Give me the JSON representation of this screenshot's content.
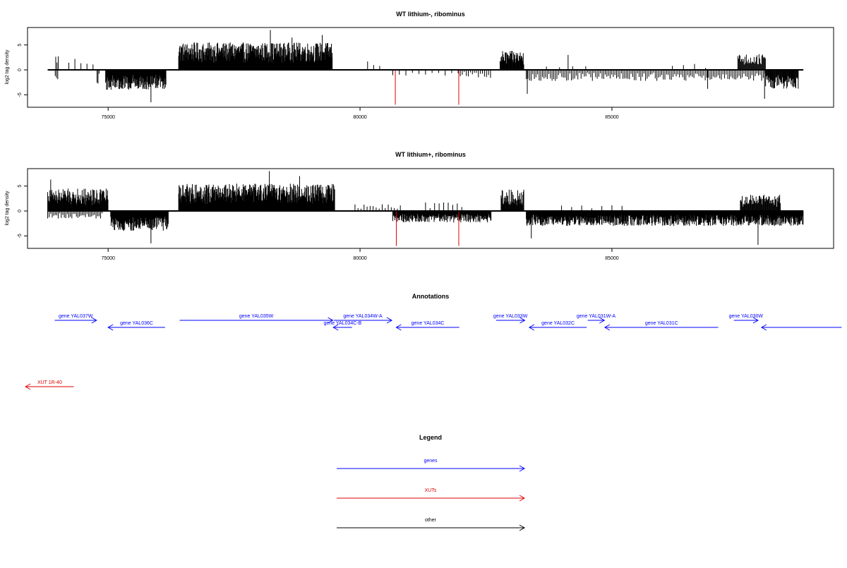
{
  "chart_data": [
    {
      "type": "bar",
      "title": "WT lithium-, ribominus",
      "ylabel": "log2 tag density",
      "xlim": [
        73400,
        89400
      ],
      "ylim": [
        -7.5,
        8.5
      ],
      "xticks": [
        75000,
        80000,
        85000
      ],
      "yticks": [
        -5,
        0,
        5
      ],
      "x_tick_labels": [
        "75000",
        "80000",
        "85000"
      ],
      "y_tick_labels": [
        "-5",
        "0",
        "5"
      ],
      "baseline_range": [
        73800,
        88800
      ],
      "series": [
        {
          "strand": "plus",
          "color": "#000000",
          "blocks": [
            {
              "range": [
                73960,
                74010
              ],
              "step": 25,
              "amp": 3.2
            },
            {
              "range": [
                74220,
                74800
              ],
              "step": 120,
              "amp": 2.5
            },
            {
              "range": [
                76400,
                79450
              ],
              "step": 8,
              "amp": 5.5
            },
            {
              "range": [
                80150,
                80500
              ],
              "step": 120,
              "amp": 1.8
            },
            {
              "range": [
                82780,
                83250
              ],
              "step": 10,
              "amp": 3.8
            },
            {
              "range": [
                83700,
                84700
              ],
              "step": 260,
              "amp": 1.5
            },
            {
              "range": [
                86200,
                87000
              ],
              "step": 220,
              "amp": 1.4
            },
            {
              "range": [
                87500,
                88050
              ],
              "step": 14,
              "amp": 3.2
            }
          ],
          "peaks": [
            {
              "x": 78220,
              "value": 8.0
            },
            {
              "x": 79250,
              "value": 7.0
            },
            {
              "x": 78650,
              "value": 6.5
            },
            {
              "x": 84130,
              "value": 3.0
            }
          ]
        },
        {
          "strand": "minus",
          "color": "#000000",
          "blocks": [
            {
              "range": [
                73950,
                74000
              ],
              "step": 25,
              "amp": 2.0
            },
            {
              "range": [
                74780,
                74820
              ],
              "step": 20,
              "amp": 3.0
            },
            {
              "range": [
                74950,
                76150
              ],
              "step": 9,
              "amp": 4.0
            },
            {
              "range": [
                80650,
                81950
              ],
              "step": 130,
              "amp": 1.2
            },
            {
              "range": [
                81950,
                82600
              ],
              "step": 40,
              "amp": 1.6
            },
            {
              "range": [
                83300,
                88650
              ],
              "step": 32,
              "amp": 2.2
            },
            {
              "range": [
                88050,
                88700
              ],
              "step": 12,
              "amp": 3.8
            }
          ],
          "peaks": [
            {
              "x": 75850,
              "value": -6.5
            },
            {
              "x": 83320,
              "value": -4.8
            },
            {
              "x": 88030,
              "value": -5.8
            },
            {
              "x": 86900,
              "value": -3.8
            }
          ]
        },
        {
          "strand": "minus",
          "color": "#e00000",
          "peaks": [
            {
              "x": 80700,
              "value": -7.0
            },
            {
              "x": 81960,
              "value": -7.0
            }
          ]
        }
      ]
    },
    {
      "type": "bar",
      "title": "WT lithium+, ribominus",
      "ylabel": "log2 tag density",
      "xlim": [
        73400,
        89400
      ],
      "ylim": [
        -7.5,
        8.5
      ],
      "xticks": [
        75000,
        80000,
        85000
      ],
      "yticks": [
        -5,
        0,
        5
      ],
      "x_tick_labels": [
        "75000",
        "80000",
        "85000"
      ],
      "y_tick_labels": [
        "-5",
        "0",
        "5"
      ],
      "baseline_range": [
        73800,
        88800
      ],
      "series": [
        {
          "strand": "plus",
          "color": "#000000",
          "blocks": [
            {
              "range": [
                73800,
                75000
              ],
              "step": 9,
              "amp": 4.5
            },
            {
              "range": [
                76400,
                79500
              ],
              "step": 8,
              "amp": 5.5
            },
            {
              "range": [
                79900,
                80800
              ],
              "step": 60,
              "amp": 1.5
            },
            {
              "range": [
                81300,
                82100
              ],
              "step": 90,
              "amp": 1.8
            },
            {
              "range": [
                82800,
                83250
              ],
              "step": 10,
              "amp": 4.3
            },
            {
              "range": [
                84000,
                85200
              ],
              "step": 200,
              "amp": 1.2
            },
            {
              "range": [
                87550,
                88350
              ],
              "step": 12,
              "amp": 3.3
            }
          ],
          "peaks": [
            {
              "x": 78200,
              "value": 8.0
            },
            {
              "x": 78800,
              "value": 7.0
            },
            {
              "x": 73860,
              "value": 6.3
            }
          ]
        },
        {
          "strand": "minus",
          "color": "#000000",
          "blocks": [
            {
              "range": [
                73800,
                74900
              ],
              "step": 30,
              "amp": 1.5
            },
            {
              "range": [
                75050,
                76200
              ],
              "step": 9,
              "amp": 4.0
            },
            {
              "range": [
                80650,
                82600
              ],
              "step": 10,
              "amp": 2.3
            },
            {
              "range": [
                83300,
                88800
              ],
              "step": 8,
              "amp": 3.0
            }
          ],
          "peaks": [
            {
              "x": 75850,
              "value": -6.5
            },
            {
              "x": 87900,
              "value": -6.8
            },
            {
              "x": 83400,
              "value": -5.5
            }
          ]
        },
        {
          "strand": "minus",
          "color": "#e00000",
          "peaks": [
            {
              "x": 80720,
              "value": -7.0
            },
            {
              "x": 81960,
              "value": -7.0
            }
          ]
        }
      ]
    }
  ],
  "annotations": {
    "title": "Annotations",
    "features": [
      {
        "label": "gene YAL037W",
        "start": 73940,
        "end": 74770,
        "direction": "right",
        "row": 1,
        "kind": "gene"
      },
      {
        "label": "gene YAL036C",
        "start": 75000,
        "end": 76130,
        "direction": "left",
        "row": 2,
        "kind": "gene"
      },
      {
        "label": "gene YAL035W",
        "start": 76420,
        "end": 79460,
        "direction": "right",
        "row": 1,
        "kind": "gene"
      },
      {
        "label": "gene YAL034W-A",
        "start": 79480,
        "end": 80630,
        "direction": "right",
        "row": 1,
        "kind": "gene"
      },
      {
        "label": "gene YAL034C-B",
        "start": 79470,
        "end": 79840,
        "direction": "left",
        "row": 2,
        "kind": "gene"
      },
      {
        "label": "gene YAL034C",
        "start": 80720,
        "end": 81970,
        "direction": "left",
        "row": 2,
        "kind": "gene"
      },
      {
        "label": "gene YAL033W",
        "start": 82700,
        "end": 83270,
        "direction": "right",
        "row": 1,
        "kind": "gene"
      },
      {
        "label": "gene YAL032C",
        "start": 83360,
        "end": 84500,
        "direction": "left",
        "row": 2,
        "kind": "gene"
      },
      {
        "label": "gene YAL031W-A",
        "start": 84520,
        "end": 84850,
        "direction": "right",
        "row": 1,
        "kind": "gene"
      },
      {
        "label": "gene YAL031C",
        "start": 84860,
        "end": 87110,
        "direction": "left",
        "row": 2,
        "kind": "gene"
      },
      {
        "label": "gene YAL030W",
        "start": 87420,
        "end": 87900,
        "direction": "right",
        "row": 1,
        "kind": "gene"
      },
      {
        "label": "",
        "start": 87970,
        "end": 89560,
        "direction": "left",
        "row": 2,
        "kind": "gene"
      },
      {
        "label": "XUT 1R-40",
        "start": 73360,
        "end": 74320,
        "direction": "left",
        "row": 3,
        "kind": "xut"
      }
    ]
  },
  "legend": {
    "title": "Legend",
    "items": [
      {
        "label": "genes",
        "color": "#0000ff"
      },
      {
        "label": "XUTs",
        "color": "#e00000"
      },
      {
        "label": "other",
        "color": "#000000"
      }
    ]
  },
  "colors": {
    "gene": "#0000ff",
    "xut": "#e00000",
    "other": "#000000"
  }
}
